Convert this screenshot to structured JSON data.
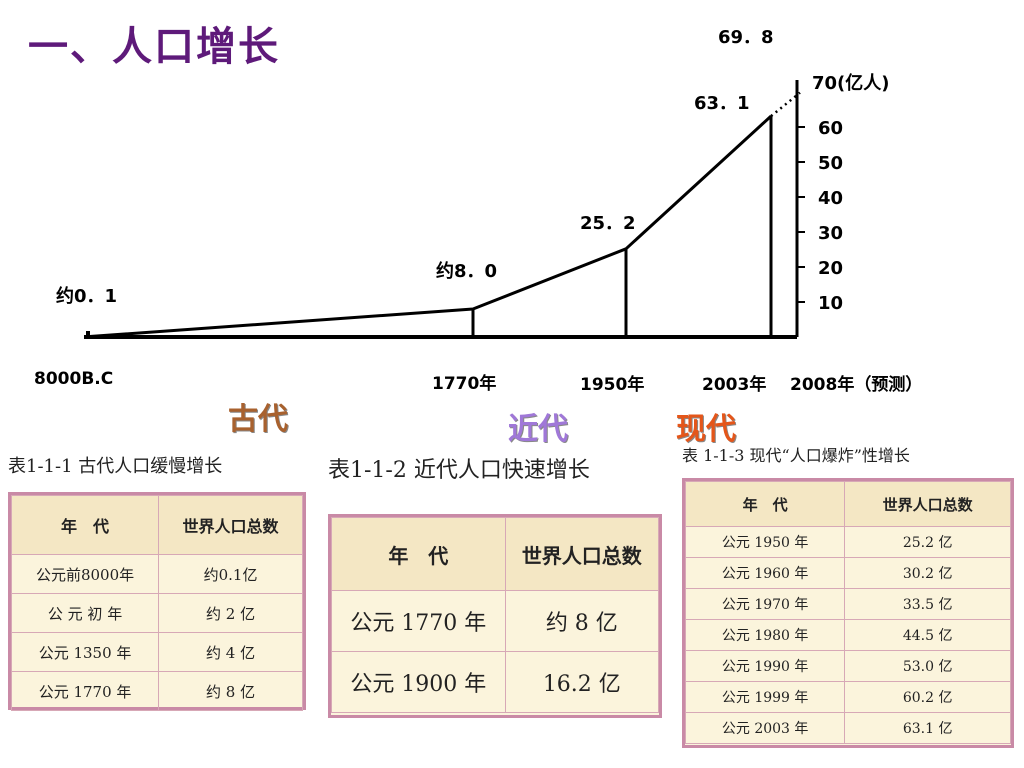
{
  "title": "一、人口增长",
  "chart_data": {
    "type": "line",
    "series": [
      {
        "points": [
          {
            "x": "8000B.C",
            "y": 0.1
          },
          {
            "x": "1770年",
            "y": 8.0
          },
          {
            "x": "1950年",
            "y": 25.2
          },
          {
            "x": "2003年",
            "y": 63.1
          }
        ]
      },
      {
        "style": "dotted",
        "points": [
          {
            "x": "2003年",
            "y": 63.1
          },
          {
            "x": "2008年（预测）",
            "y": 69.8
          }
        ]
      }
    ],
    "categories": [
      "8000B.C",
      "1770年",
      "1950年",
      "2003年",
      "2008年（预测）"
    ],
    "data_labels": [
      "约0．1",
      "约8．0",
      "25．2",
      "63．1",
      "69．8"
    ],
    "yticks": [
      10,
      20,
      30,
      40,
      50,
      60
    ],
    "ytick_labels": [
      "10",
      "20",
      "30",
      "40",
      "50",
      "60"
    ],
    "ylabel": "70(亿人)",
    "ylim": [
      0,
      70
    ],
    "grid": false,
    "axis_position": "right"
  },
  "eras": [
    "古代",
    "近代",
    "现代"
  ],
  "tables": [
    {
      "caption": "表1-1-1  古代人口缓慢增长",
      "headers": [
        "年　代",
        "世界人口总数"
      ],
      "rows": [
        [
          "公元前8000年",
          "约0.1亿"
        ],
        [
          "公 元 初 年",
          "约 2 亿"
        ],
        [
          "公元 1350 年",
          "约 4 亿"
        ],
        [
          "公元 1770 年",
          "约 8 亿"
        ]
      ]
    },
    {
      "caption": "表1-1-2  近代人口快速增长",
      "headers": [
        "年　代",
        "世界人口总数"
      ],
      "rows": [
        [
          "公元 1770 年",
          "约 8 亿"
        ],
        [
          "公元 1900 年",
          "16.2 亿"
        ]
      ]
    },
    {
      "caption": "表 1-1-3  现代“人口爆炸”性增长",
      "headers": [
        "年　代",
        "世界人口总数"
      ],
      "rows": [
        [
          "公元 1950 年",
          "25.2 亿"
        ],
        [
          "公元 1960 年",
          "30.2 亿"
        ],
        [
          "公元 1970 年",
          "33.5 亿"
        ],
        [
          "公元 1980 年",
          "44.5 亿"
        ],
        [
          "公元 1990 年",
          "53.0 亿"
        ],
        [
          "公元 1999 年",
          "60.2 亿"
        ],
        [
          "公元 2003 年",
          "63.1 亿"
        ]
      ]
    }
  ]
}
